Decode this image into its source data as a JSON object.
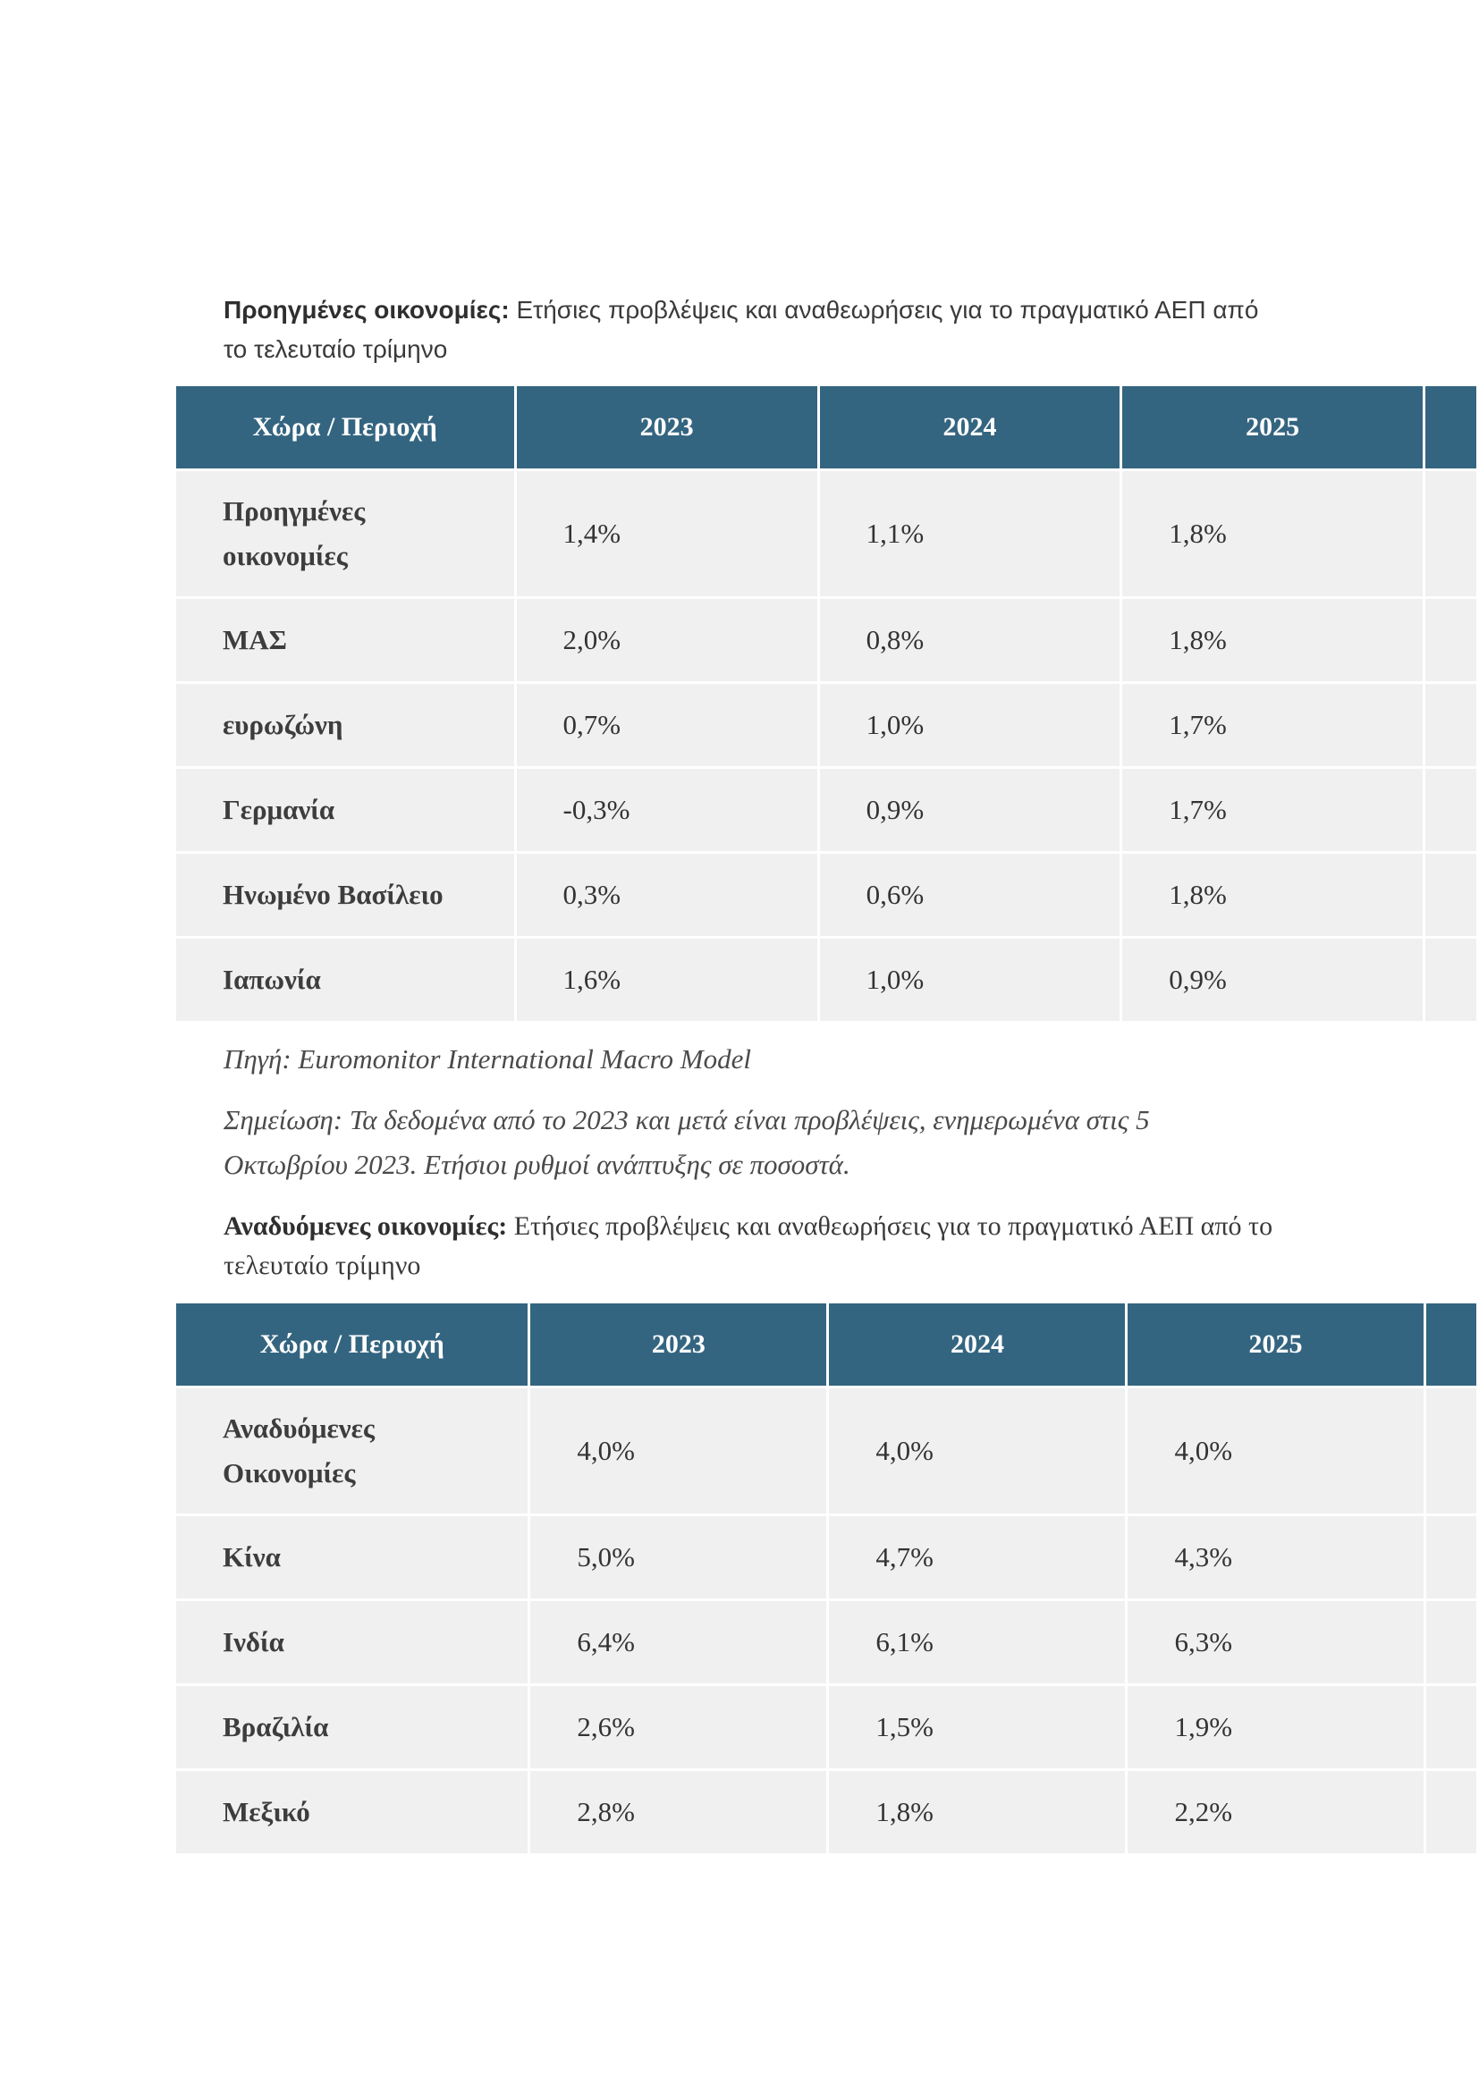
{
  "section1": {
    "title_bold": "Προηγμένες οικονομίες:",
    "title_rest": " Ετήσιες προβλέψεις και αναθεωρήσεις για το πραγματικό ΑΕΠ από το τελευταίο τρίμηνο",
    "table": {
      "headers": [
        "Χώρα / Περιοχή",
        "2023",
        "2024",
        "2025"
      ],
      "rows": [
        {
          "region": "Προηγμένες οικονομίες",
          "values": [
            "1,4%",
            "1,1%",
            "1,8%"
          ]
        },
        {
          "region": "ΜΑΣ",
          "values": [
            "2,0%",
            "0,8%",
            "1,8%"
          ]
        },
        {
          "region": "ευρωζώνη",
          "values": [
            "0,7%",
            "1,0%",
            "1,7%"
          ]
        },
        {
          "region": "Γερμανία",
          "values": [
            "-0,3%",
            "0,9%",
            "1,7%"
          ]
        },
        {
          "region": "Ηνωμένο Βασίλειο",
          "values": [
            "0,3%",
            "0,6%",
            "1,8%"
          ]
        },
        {
          "region": "Ιαπωνία",
          "values": [
            "1,6%",
            "1,0%",
            "0,9%"
          ]
        }
      ]
    },
    "source": "Πηγή: Euromonitor International Macro Model",
    "note": "Σημείωση: Τα δεδομένα από το 2023 και μετά είναι προβλέψεις, ενημερωμένα στις 5 Οκτωβρίου 2023. Ετήσιοι ρυθμοί ανάπτυξης σε ποσοστά."
  },
  "section2": {
    "title_bold": "Αναδυόμενες οικονομίες:",
    "title_rest": " Ετήσιες προβλέψεις και αναθεωρήσεις για το πραγματικό ΑΕΠ από το τελευταίο τρίμηνο",
    "table": {
      "headers": [
        "Χώρα / Περιοχή",
        "2023",
        "2024",
        "2025"
      ],
      "rows": [
        {
          "region": "Αναδυόμενες Οικονομίες",
          "values": [
            "4,0%",
            "4,0%",
            "4,0%"
          ]
        },
        {
          "region": "Κίνα",
          "values": [
            "5,0%",
            "4,7%",
            "4,3%"
          ]
        },
        {
          "region": "Ινδία",
          "values": [
            "6,4%",
            "6,1%",
            "6,3%"
          ]
        },
        {
          "region": "Βραζιλία",
          "values": [
            "2,6%",
            "1,5%",
            "1,9%"
          ]
        },
        {
          "region": "Μεξικό",
          "values": [
            "2,8%",
            "1,8%",
            "2,2%"
          ]
        }
      ]
    }
  }
}
